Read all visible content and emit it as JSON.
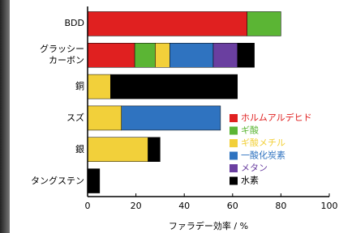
{
  "chart_data": {
    "type": "stacked-barh",
    "x_label": "ファラデー効率 / %",
    "categories": [
      "BDD",
      "グラッシー\nカーボン",
      "銅",
      "スズ",
      "銀",
      "タングステン"
    ],
    "series": [
      {
        "name": "ホルムアルデヒド",
        "color": "#e02020",
        "values": [
          66,
          19.5,
          0,
          0,
          0,
          0
        ]
      },
      {
        "name": "ギ酸",
        "color": "#5bb534",
        "values": [
          14,
          8.5,
          0,
          0,
          0,
          0
        ]
      },
      {
        "name": "ギ酸メチル",
        "color": "#f2d03a",
        "values": [
          0,
          6,
          9.5,
          14,
          25,
          0
        ]
      },
      {
        "name": "一酸化炭素",
        "color": "#2f73c0",
        "values": [
          0,
          18,
          0,
          41,
          0,
          0
        ]
      },
      {
        "name": "メタン",
        "color": "#6a3fa0",
        "values": [
          0,
          10,
          0,
          0,
          0,
          0
        ]
      },
      {
        "name": "水素",
        "color": "#000000",
        "values": [
          0,
          7,
          52.5,
          0,
          5,
          5
        ]
      }
    ],
    "xlim": [
      0,
      100
    ],
    "xticks": [
      0,
      20,
      40,
      60,
      80,
      100
    ]
  }
}
